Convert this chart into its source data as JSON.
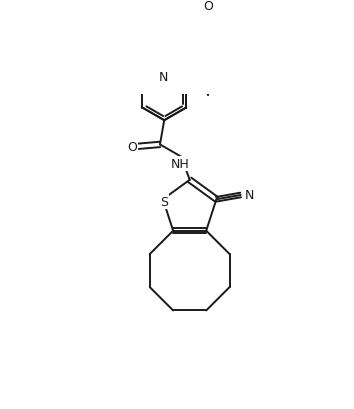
{
  "bg_color": "#ffffff",
  "line_color": "#1a1a1a",
  "lw": 1.4,
  "figsize": [
    3.54,
    4.1
  ],
  "dpi": 100,
  "atoms": {
    "S_label": "S",
    "NH_label": "NH",
    "O_label": "O",
    "CN_label": "N",
    "N_label": "N",
    "O2_label": "O"
  }
}
